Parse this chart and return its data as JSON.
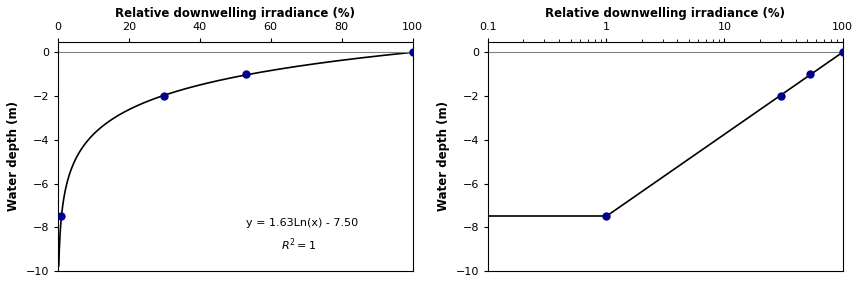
{
  "title": "Relative downwelling irradiance (%)",
  "ylabel": "Water depth (m)",
  "equation_line1": "y = 1.63Ln(x) - 7.50",
  "equation_line2": "R2 = 1",
  "data_points_x": [
    1,
    30,
    53,
    100
  ],
  "data_points_y": [
    -7.5,
    -2.0,
    -1.0,
    0.0
  ],
  "ylim": [
    -10,
    0.5
  ],
  "yticks": [
    0,
    -2,
    -4,
    -6,
    -8,
    -10
  ],
  "xlim_linear": [
    0,
    100
  ],
  "xlim_log": [
    0.1,
    100
  ],
  "xticks_linear": [
    0,
    20,
    40,
    60,
    80,
    100
  ],
  "a": 1.63,
  "b": -7.5,
  "background_color": "#ffffff",
  "line_color": "#000000",
  "point_color": "#00008B",
  "point_size": 5,
  "ann_x": 53,
  "ann_y": -7.8,
  "ann_y2": -8.8
}
